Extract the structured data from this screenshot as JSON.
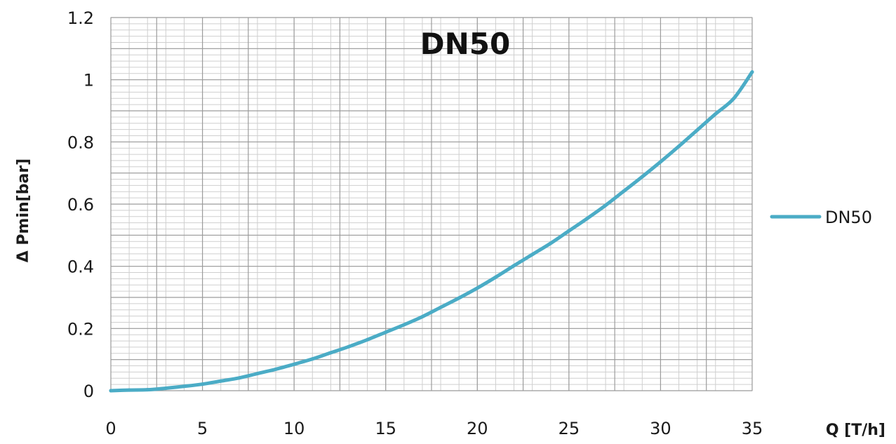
{
  "chart_data": {
    "type": "line",
    "title": "DN50",
    "xlabel": "Q [T/h]",
    "ylabel": "Δ Pmin[bar]",
    "xlim": [
      0,
      35
    ],
    "ylim": [
      0,
      1.2
    ],
    "x_ticks": [
      "0",
      "5",
      "10",
      "15",
      "20",
      "25",
      "30",
      "35"
    ],
    "y_ticks": [
      "0",
      "0.2",
      "0.4",
      "0.6",
      "0.8",
      "1",
      "1.2"
    ],
    "grid": true,
    "legend_position": "right",
    "series": [
      {
        "name": "DN50",
        "color": "#4BACC6",
        "x": [
          0,
          1,
          2,
          3,
          4,
          5,
          6,
          7,
          8,
          9,
          10,
          11,
          12,
          13,
          14,
          15,
          16,
          17,
          18,
          19,
          20,
          21,
          22,
          23,
          24,
          25,
          26,
          27,
          28,
          29,
          30,
          31,
          32,
          33,
          34,
          35
        ],
        "y": [
          0,
          0.002,
          0.003,
          0.008,
          0.014,
          0.021,
          0.031,
          0.041,
          0.055,
          0.069,
          0.085,
          0.102,
          0.122,
          0.142,
          0.164,
          0.188,
          0.212,
          0.238,
          0.268,
          0.298,
          0.33,
          0.365,
          0.402,
          0.438,
          0.474,
          0.514,
          0.554,
          0.596,
          0.642,
          0.688,
          0.736,
          0.786,
          0.838,
          0.89,
          0.94,
          1.025
        ]
      }
    ]
  }
}
